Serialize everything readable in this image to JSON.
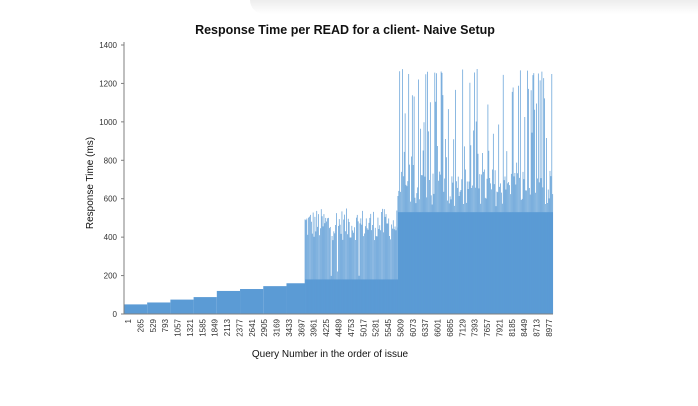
{
  "chart_data": {
    "type": "bar",
    "title": "Response Time per READ for a client- Naive Setup",
    "xlabel": "Query Number in the order of issue",
    "ylabel": "Response Time (ms)",
    "ylim": [
      0,
      1400
    ],
    "yticks": [
      "0",
      "200",
      "400",
      "600",
      "800",
      "1000",
      "1200",
      "1400"
    ],
    "xticks": [
      "1",
      "265",
      "529",
      "793",
      "1057",
      "1321",
      "1585",
      "1849",
      "2113",
      "2377",
      "2641",
      "2905",
      "3169",
      "3433",
      "3697",
      "3961",
      "4225",
      "4489",
      "4753",
      "5017",
      "5281",
      "5545",
      "5809",
      "6073",
      "6337",
      "6601",
      "6865",
      "7129",
      "7393",
      "7657",
      "7921",
      "8185",
      "8449",
      "8713",
      "8977"
    ],
    "xlim": [
      1,
      9240
    ],
    "series_color": "#5b9bd5",
    "segments": [
      {
        "x_start": 1,
        "x_end": 500,
        "base_value": 50,
        "spike_value": 50
      },
      {
        "x_start": 500,
        "x_end": 1000,
        "base_value": 60,
        "spike_value": 60
      },
      {
        "x_start": 1000,
        "x_end": 1500,
        "base_value": 75,
        "spike_value": 75
      },
      {
        "x_start": 1500,
        "x_end": 2000,
        "base_value": 88,
        "spike_value": 88
      },
      {
        "x_start": 2000,
        "x_end": 2500,
        "base_value": 120,
        "spike_value": 120
      },
      {
        "x_start": 2500,
        "x_end": 3000,
        "base_value": 130,
        "spike_value": 130
      },
      {
        "x_start": 3000,
        "x_end": 3500,
        "base_value": 145,
        "spike_value": 145
      },
      {
        "x_start": 3500,
        "x_end": 3900,
        "base_value": 160,
        "spike_value": 160
      },
      {
        "x_start": 3900,
        "x_end": 5900,
        "base_value": 180,
        "spike_value": 550
      },
      {
        "x_start": 5900,
        "x_end": 9240,
        "base_value": 530,
        "spike_value": 1280
      }
    ]
  }
}
